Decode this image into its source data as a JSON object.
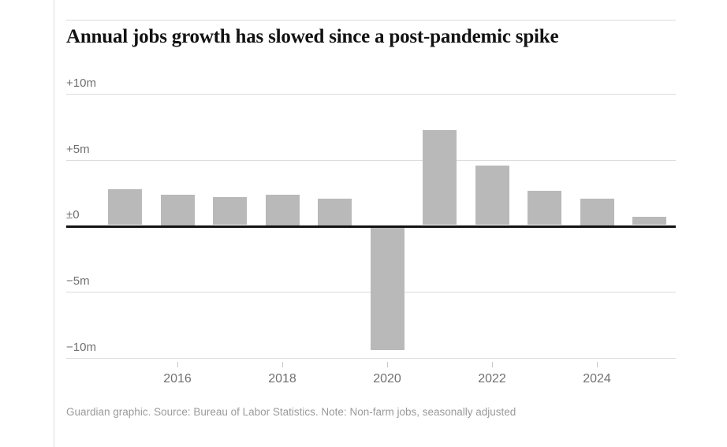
{
  "page": {
    "title": "Annual jobs growth has slowed since a post-pandemic spike",
    "footer": "Guardian graphic. Source: Bureau of Labor Statistics. Note: Non-farm jobs, seasonally adjusted"
  },
  "colors": {
    "bar": "#b9b9b9",
    "grid": "#dcdcdc",
    "zero_line": "#121212",
    "axis_label": "#707070",
    "title_text": "#121212",
    "footer_text": "#9a9a9a",
    "tick": "#c8c8c8"
  },
  "chart_data": {
    "type": "bar",
    "title": "Annual jobs growth has slowed since a post-pandemic spike",
    "unit": "millions of jobs (annual change)",
    "categories": [
      2015,
      2016,
      2017,
      2018,
      2019,
      2020,
      2021,
      2022,
      2023,
      2024,
      2025
    ],
    "values": [
      2.7,
      2.3,
      2.1,
      2.3,
      2.0,
      -9.3,
      7.2,
      4.5,
      2.6,
      2.0,
      0.6
    ],
    "ylim": [
      -10,
      10
    ],
    "y_ticks": [
      {
        "label": "+10m",
        "value": 10
      },
      {
        "label": "+5m",
        "value": 5
      },
      {
        "label": "±0",
        "value": 0
      },
      {
        "label": "−5m",
        "value": -5
      },
      {
        "label": "−10m",
        "value": -10
      }
    ],
    "x_ticks": [
      {
        "label": "2016",
        "year": 2016
      },
      {
        "label": "2018",
        "year": 2018
      },
      {
        "label": "2020",
        "year": 2020
      },
      {
        "label": "2022",
        "year": 2022
      },
      {
        "label": "2024",
        "year": 2024
      }
    ],
    "grid": "horizontal",
    "legend": "none",
    "bar_color": "#b9b9b9",
    "source": "Bureau of Labor Statistics",
    "note": "Non-farm jobs, seasonally adjusted",
    "credit": "Guardian graphic"
  }
}
